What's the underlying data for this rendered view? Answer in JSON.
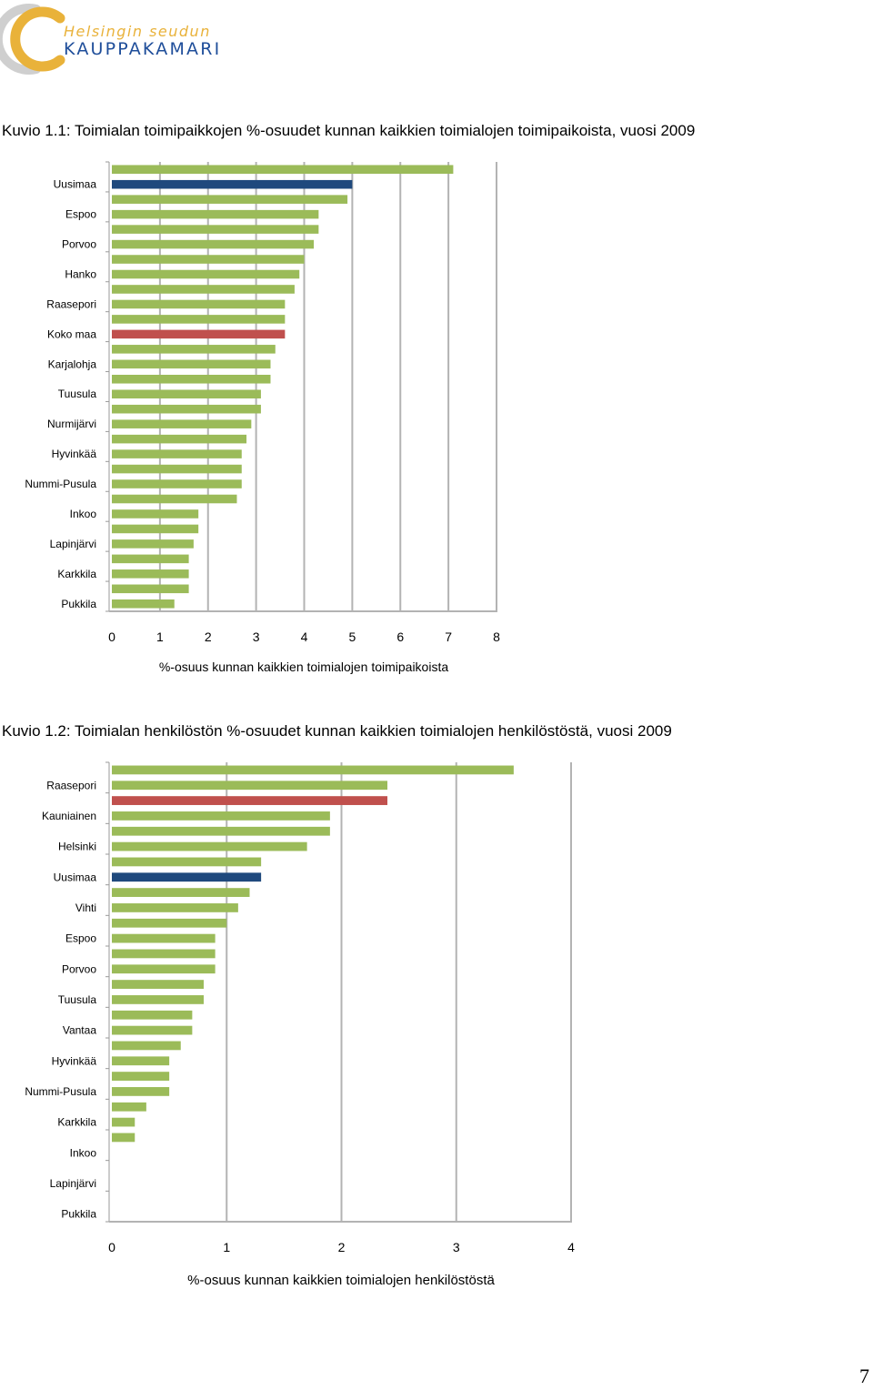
{
  "logo": {
    "line1": "Helsingin seudun",
    "line2": "KAUPPAKAMARI",
    "colors": {
      "ring": "#e9b23a",
      "ring_shadow": "#cfcfcf",
      "text_top": "#e9b23a",
      "text_bottom": "#1f4e9a"
    }
  },
  "figure1": {
    "title": "Kuvio 1.1: Toimialan toimipaikkojen %-osuudet kunnan kaikkien toimialojen toimipaikoista, vuosi 2009"
  },
  "figure2": {
    "title": "Kuvio 1.2: Toimialan henkilöstön %-osuudet kunnan kaikkien toimialojen henkilöstöstä, vuosi 2009"
  },
  "colors": {
    "default_bar": "#9bbb59",
    "uusimaa": "#1f497d",
    "koko_maa": "#c0504d",
    "grid": "#b3b3b3"
  },
  "chart_data": [
    {
      "type": "bar",
      "orientation": "horizontal",
      "xlabel": "%-osuus kunnan kaikkien toimialojen toimipaikoista",
      "xlim": [
        0,
        8
      ],
      "xticks": [
        0,
        1,
        2,
        3,
        4,
        5,
        6,
        7,
        8
      ],
      "grid": true,
      "categories_shown": [
        "Uusimaa",
        "Espoo",
        "Porvoo",
        "Hanko",
        "Raasepori",
        "Koko maa",
        "Karjalohja",
        "Tuusula",
        "Nurmijärvi",
        "Hyvinkää",
        "Nummi-Pusula",
        "Inkoo",
        "Lapinjärvi",
        "Karkkila",
        "Pukkila"
      ],
      "values": [
        7.1,
        5.0,
        4.9,
        4.3,
        4.3,
        4.2,
        4.0,
        3.9,
        3.8,
        3.6,
        3.6,
        3.6,
        3.4,
        3.3,
        3.3,
        3.1,
        3.1,
        2.9,
        2.8,
        2.7,
        2.7,
        2.7,
        2.6,
        1.8,
        1.8,
        1.7,
        1.6,
        1.6,
        1.6,
        1.3
      ],
      "highlight": {
        "1": "uusimaa",
        "11": "koko_maa"
      }
    },
    {
      "type": "bar",
      "orientation": "horizontal",
      "xlabel": "%-osuus kunnan kaikkien toimialojen henkilöstöstä",
      "xlim": [
        0,
        4
      ],
      "xticks": [
        0,
        1,
        2,
        3,
        4
      ],
      "grid": true,
      "categories_shown": [
        "Raasepori",
        "Kauniainen",
        "Helsinki",
        "Uusimaa",
        "Vihti",
        "Espoo",
        "Porvoo",
        "Tuusula",
        "Vantaa",
        "Hyvinkää",
        "Nummi-Pusula",
        "Karkkila",
        "Inkoo",
        "Lapinjärvi",
        "Pukkila"
      ],
      "values": [
        3.5,
        2.4,
        2.4,
        1.9,
        1.9,
        1.7,
        1.3,
        1.3,
        1.2,
        1.1,
        1.0,
        0.9,
        0.9,
        0.9,
        0.8,
        0.8,
        0.7,
        0.7,
        0.6,
        0.5,
        0.5,
        0.5,
        0.3,
        0.2,
        0.2,
        0,
        0,
        0,
        0,
        0
      ],
      "highlight": {
        "2": "koko_maa",
        "7": "uusimaa"
      }
    }
  ],
  "page_number": "7"
}
